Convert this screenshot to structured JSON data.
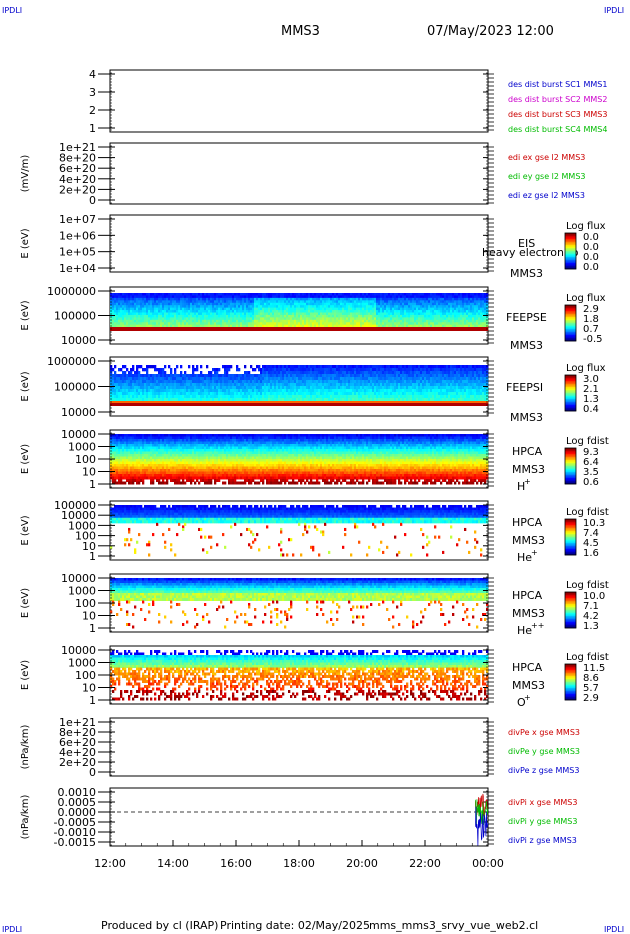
{
  "header": {
    "corner_label": "IPDLI",
    "spacecraft": "MMS3",
    "datetime": "07/May/2023 12:00"
  },
  "footer": {
    "produced_by": "Produced by cl (IRAP)",
    "printing_date": "Printing date: 02/May/2025",
    "script_name": "mms_mms3_srvy_vue_web2.cl"
  },
  "x_axis": {
    "ticks": [
      "12:00",
      "14:00",
      "16:00",
      "18:00",
      "20:00",
      "22:00",
      "00:00"
    ],
    "range_hours": [
      12,
      24
    ]
  },
  "colors": {
    "blue": "#0000cc",
    "magenta": "#cc00cc",
    "red": "#cc0000",
    "green": "#00bb00"
  },
  "chart_data": [
    {
      "type": "line",
      "ylabel": "",
      "ticks": [
        "4",
        "3",
        "2",
        "1"
      ],
      "ylim": [
        0.5,
        4.5
      ],
      "series": [],
      "legend": [
        {
          "text": "des dist burst SC1 MMS1",
          "color": "#0000cc"
        },
        {
          "text": "des dist burst SC2 MMS2",
          "color": "#cc00cc"
        },
        {
          "text": "des dist burst SC3 MMS3",
          "color": "#cc0000"
        },
        {
          "text": "des dist burst SC4 MMS4",
          "color": "#00bb00"
        }
      ]
    },
    {
      "type": "line",
      "ylabel": "(mV/m)",
      "ticks": [
        "1e+21",
        "8e+20",
        "6e+20",
        "4e+20",
        "2e+20",
        "0"
      ],
      "ylim": [
        0,
        1e+21
      ],
      "zero_line": true,
      "series": [],
      "legend": [
        {
          "text": "edi ex gse l2 MMS3",
          "color": "#cc0000"
        },
        {
          "text": "edi ey gse l2 MMS3",
          "color": "#00bb00"
        },
        {
          "text": "edi ez gse l2 MMS3",
          "color": "#0000cc"
        }
      ]
    },
    {
      "type": "heatmap",
      "ylabel": "E (eV)",
      "ticks": [
        "1e+07",
        "1e+06",
        "1e+05",
        "1e+04"
      ],
      "instrument": [
        "EIS",
        "MMS3"
      ],
      "overlay_text": "heavy electron to",
      "colorbar": {
        "title": "Log flux",
        "labels": [
          "0.0",
          "0.0",
          "0.0",
          "0.0"
        ]
      },
      "fill": "empty"
    },
    {
      "type": "heatmap",
      "ylabel": "E (eV)",
      "ticks": [
        "1000000",
        "100000",
        "10000"
      ],
      "instrument": [
        "FEEPSE",
        "MMS3"
      ],
      "colorbar": {
        "title": "Log flux",
        "labels": [
          "2.9",
          "1.8",
          "0.7",
          "-0.5"
        ]
      },
      "fill": "feepse"
    },
    {
      "type": "heatmap",
      "ylabel": "E (eV)",
      "ticks": [
        "1000000",
        "100000",
        "10000"
      ],
      "instrument": [
        "FEEPSI",
        "MMS3"
      ],
      "colorbar": {
        "title": "Log flux",
        "labels": [
          "3.0",
          "2.1",
          "1.3",
          "0.4"
        ]
      },
      "fill": "feepsi"
    },
    {
      "type": "heatmap",
      "ylabel": "E (eV)",
      "ticks": [
        "10000",
        "1000",
        "100",
        "10",
        "1"
      ],
      "instrument": [
        "HPCA",
        "MMS3"
      ],
      "species": "H",
      "species_charge": "+",
      "colorbar": {
        "title": "Log fdist",
        "labels": [
          "9.3",
          "6.4",
          "3.5",
          "0.6"
        ]
      },
      "fill": "hplus"
    },
    {
      "type": "heatmap",
      "ylabel": "E (eV)",
      "ticks": [
        "100000",
        "10000",
        "1000",
        "100",
        "10",
        "1"
      ],
      "instrument": [
        "HPCA",
        "MMS3"
      ],
      "species": "He",
      "species_charge": "+",
      "colorbar": {
        "title": "Log fdist",
        "labels": [
          "10.3",
          "7.4",
          "4.5",
          "1.6"
        ]
      },
      "fill": "heplus"
    },
    {
      "type": "heatmap",
      "ylabel": "E (eV)",
      "ticks": [
        "10000",
        "1000",
        "100",
        "10",
        "1"
      ],
      "instrument": [
        "HPCA",
        "MMS3"
      ],
      "species": "He",
      "species_charge": "++",
      "colorbar": {
        "title": "Log fdist",
        "labels": [
          "10.0",
          "7.1",
          "4.2",
          "1.3"
        ]
      },
      "fill": "heplusplus"
    },
    {
      "type": "heatmap",
      "ylabel": "E (eV)",
      "ticks": [
        "10000",
        "1000",
        "100",
        "10",
        "1"
      ],
      "instrument": [
        "HPCA",
        "MMS3"
      ],
      "species": "O",
      "species_charge": "+",
      "colorbar": {
        "title": "Log fdist",
        "labels": [
          "11.5",
          "8.6",
          "5.7",
          "2.9"
        ]
      },
      "fill": "oplus"
    },
    {
      "type": "line",
      "ylabel": "(nPa/km)",
      "ticks": [
        "1e+21",
        "8e+20",
        "6e+20",
        "4e+20",
        "2e+20",
        "0"
      ],
      "ylim": [
        0,
        1e+21
      ],
      "zero_line": true,
      "series": [],
      "legend": [
        {
          "text": "divPe x gse MMS3",
          "color": "#cc0000"
        },
        {
          "text": "divPe y gse MMS3",
          "color": "#00bb00"
        },
        {
          "text": "divPe z gse MMS3",
          "color": "#0000cc"
        }
      ]
    },
    {
      "type": "line",
      "ylabel": "(nPa/km)",
      "ticks": [
        "0.0010",
        "0.0005",
        "0.0000",
        "-0.0005",
        "-0.0010",
        "-0.0015"
      ],
      "ylim": [
        -0.0017,
        0.0012
      ],
      "zero_line": true,
      "data_window_hours": [
        23.6,
        24.0
      ],
      "series": [
        {
          "name": "divPi x gse MMS3",
          "color": "#cc0000",
          "range": [
            -0.0003,
            0.001
          ]
        },
        {
          "name": "divPi y gse MMS3",
          "color": "#00bb00",
          "range": [
            -0.0008,
            0.0007
          ]
        },
        {
          "name": "divPi z gse MMS3",
          "color": "#0000cc",
          "range": [
            -0.0017,
            0.0004
          ]
        }
      ],
      "legend": [
        {
          "text": "divPi x gse MMS3",
          "color": "#cc0000"
        },
        {
          "text": "divPi y gse MMS3",
          "color": "#00bb00"
        },
        {
          "text": "divPi z gse MMS3",
          "color": "#0000cc"
        }
      ]
    }
  ]
}
